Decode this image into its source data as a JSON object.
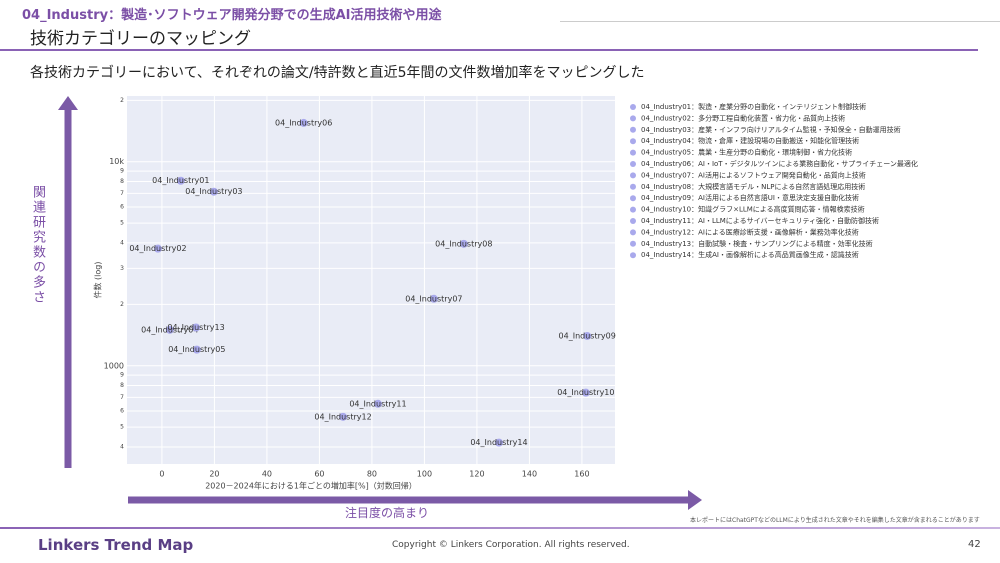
{
  "header": {
    "section": "04_Industry：製造･ソフトウェア開発分野での生成AI活用技術や用途",
    "title": "技術カテゴリーのマッピング",
    "lead": "各技術カテゴリーにおいて、それぞれの論文/特許数と直近5年間の文件数増加率をマッピングした"
  },
  "arrows": {
    "vertical": "関連研究数の多さ",
    "horizontal": "注目度の高まり"
  },
  "chart_data": {
    "type": "scatter",
    "x_label": "2020－2024年における1年ごとの増加率[%]（対数回帰）",
    "y_label": "件数 (log)",
    "color": "#a9a9ec",
    "ylog": true,
    "grid": true,
    "legend": "right",
    "xlim": [
      -13.3,
      172.6
    ],
    "xticks": [
      0,
      20,
      40,
      60,
      80,
      100,
      120,
      140,
      160
    ],
    "ylim": [
      330,
      21000
    ],
    "yticks": [
      {
        "value": 20000,
        "label": "2"
      },
      {
        "value": 10000,
        "label": "10k"
      },
      {
        "value": 9000,
        "label": "9"
      },
      {
        "value": 8000,
        "label": "8"
      },
      {
        "value": 7000,
        "label": "7"
      },
      {
        "value": 6000,
        "label": "6"
      },
      {
        "value": 5000,
        "label": "5"
      },
      {
        "value": 4000,
        "label": "4"
      },
      {
        "value": 3000,
        "label": "3"
      },
      {
        "value": 2000,
        "label": "2"
      },
      1000,
      {
        "value": 900,
        "label": "9"
      },
      {
        "value": 800,
        "label": "8"
      },
      {
        "value": 700,
        "label": "7"
      },
      {
        "value": 600,
        "label": "6"
      },
      {
        "value": 500,
        "label": "5"
      },
      {
        "value": 400,
        "label": "4"
      }
    ],
    "series": [
      {
        "name": "04_Industry01：製造・産業分野の自動化・インテリジェント制御技術",
        "label": "04_Industry01",
        "x": [
          7.2
        ],
        "values": [
          8070
        ]
      },
      {
        "name": "04_Industry02：多分野工程自動化装置・省力化・品質向上技術",
        "label": "04_Industry02",
        "x": [
          -1.5
        ],
        "values": [
          3750
        ]
      },
      {
        "name": "04_Industry03：産業・インフラ向けリアルタイム監視・予知保全・自動運用技術",
        "label": "04_Industry03",
        "x": [
          19.8
        ],
        "values": [
          7130
        ]
      },
      {
        "name": "04_Industry04：物流・倉庫・建設現場の自動搬送・知能化管理技術",
        "label": "04_Industry04",
        "x": [
          3
        ],
        "values": [
          1500
        ]
      },
      {
        "name": "04_Industry05：農業・生産分野の自動化・環境制御・省力化技術",
        "label": "04_Industry05",
        "x": [
          13.3
        ],
        "values": [
          1200
        ]
      },
      {
        "name": "04_Industry06：AI・IoT・デジタルツインによる業務自動化・サプライチェーン最適化",
        "label": "04_Industry06",
        "x": [
          54
        ],
        "values": [
          15500
        ]
      },
      {
        "name": "04_Industry07：AI活用によるソフトウェア開発自動化・品質向上技術",
        "label": "04_Industry07",
        "x": [
          103.6
        ],
        "values": [
          2130
        ]
      },
      {
        "name": "04_Industry08：大規模言語モデル・NLPによる自然言語処理応用技術",
        "label": "04_Industry08",
        "x": [
          115
        ],
        "values": [
          3960
        ]
      },
      {
        "name": "04_Industry09：AI活用による自然言語UI・意思決定支援自動化技術",
        "label": "04_Industry09",
        "x": [
          162
        ],
        "values": [
          1400
        ]
      },
      {
        "name": "04_Industry10：知識グラフ×LLMによる高度質問応答・情報検索技術",
        "label": "04_Industry10",
        "x": [
          161.5
        ],
        "values": [
          738
        ]
      },
      {
        "name": "04_Industry11：AI・LLMによるサイバーセキュリティ強化・自動防御技術",
        "label": "04_Industry11",
        "x": [
          82.3
        ],
        "values": [
          651
        ]
      },
      {
        "name": "04_Industry12：AIによる医療診断支援・画像解析・業務効率化技術",
        "label": "04_Industry12",
        "x": [
          69
        ],
        "values": [
          562
        ]
      },
      {
        "name": "04_Industry13：自動試験・検査・サンプリングによる精度・効率化技術",
        "label": "04_Industry13",
        "x": [
          13
        ],
        "values": [
          1540
        ]
      },
      {
        "name": "04_Industry14：生成AI・画像解析による高品質画像生成・認識技術",
        "label": "04_Industry14",
        "x": [
          128.4
        ],
        "values": [
          420
        ]
      }
    ]
  },
  "footer": {
    "note": "本レポートにはChatGPTなどのLLMにより生成された文章やそれを編集した文章が含まれることがあります",
    "brand": "Linkers Trend Map",
    "copyright": "Copyright © Linkers Corporation. All rights reserved.",
    "page": "42"
  }
}
